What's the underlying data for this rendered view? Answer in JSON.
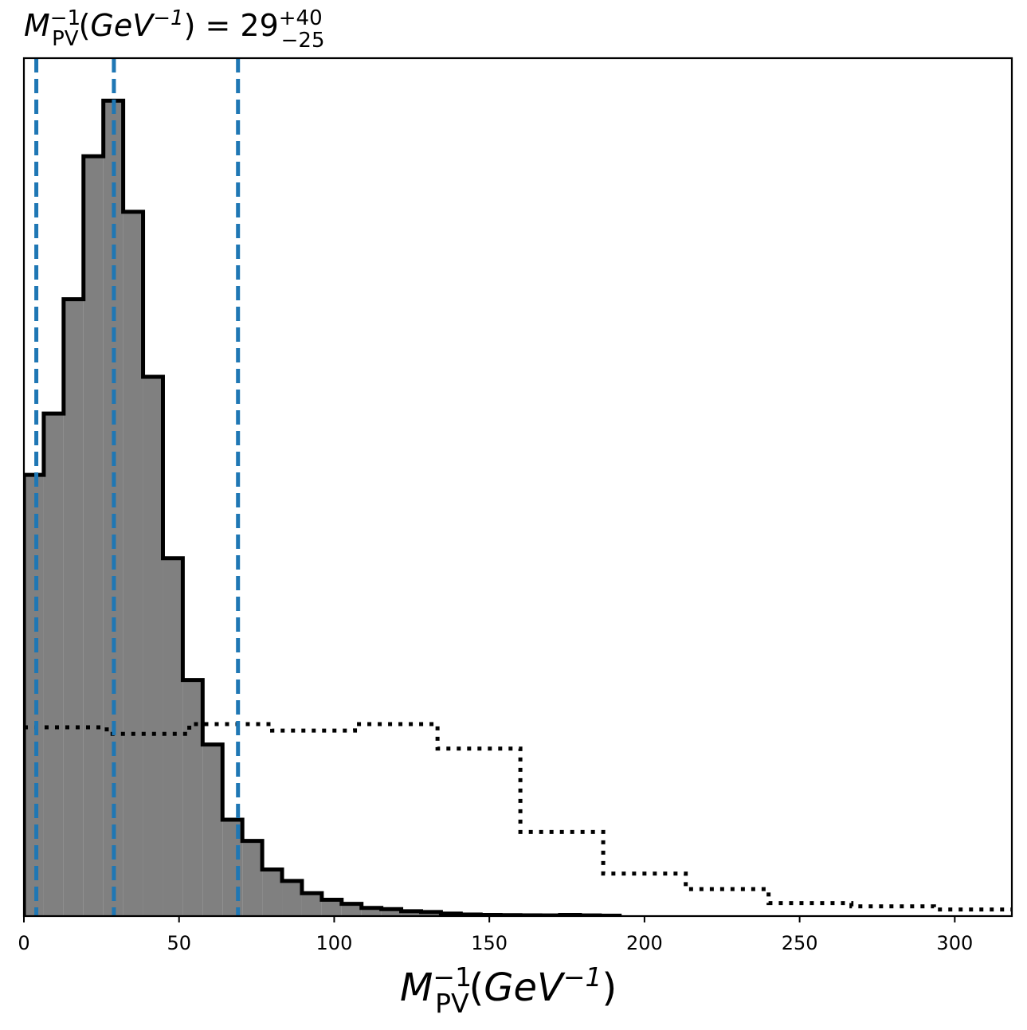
{
  "chart_data": {
    "type": "histogram",
    "title": {
      "var_main": "M",
      "var_sup": "−1",
      "var_sub": "PV",
      "unit_open": "(",
      "unit_main": "GeV",
      "unit_sup": "−1",
      "unit_close": ")",
      "equals": " = 29",
      "val_sup": "+40",
      "val_sub": "−25"
    },
    "xlabel": {
      "var_main": "M",
      "var_sup": "−1",
      "var_sub": "PV",
      "unit_open": "(",
      "unit_main": "GeV",
      "unit_sup": "−1",
      "unit_close": ")"
    },
    "ylabel": "",
    "xlim": [
      0,
      318.4
    ],
    "ylim": [
      0,
      1.05
    ],
    "x_ticks": [
      0,
      50,
      100,
      150,
      200,
      250,
      300
    ],
    "x_tick_labels": [
      "0",
      "50",
      "100",
      "150",
      "200",
      "250",
      "300"
    ],
    "y_ticks_visible": false,
    "grid": false,
    "series": [
      {
        "style": "filled-step",
        "fill_color": "#808080",
        "edge_color": "#000000",
        "bin_edges": [
          0,
          6.4,
          12.8,
          19.2,
          25.6,
          32.0,
          38.4,
          44.8,
          51.2,
          57.6,
          64.0,
          70.4,
          76.8,
          83.2,
          89.6,
          96.0,
          102.4,
          108.8,
          115.2,
          121.6,
          128.0,
          134.4,
          140.8,
          147.2,
          153.6,
          160.0,
          166.4,
          172.8,
          179.2,
          185.6,
          192.0
        ],
        "values": [
          0.54,
          0.615,
          0.755,
          0.93,
          0.998,
          0.862,
          0.66,
          0.438,
          0.289,
          0.21,
          0.118,
          0.092,
          0.057,
          0.043,
          0.028,
          0.02,
          0.015,
          0.01,
          0.0085,
          0.006,
          0.005,
          0.003,
          0.002,
          0.0015,
          0.0012,
          0.001,
          0.0008,
          0.0015,
          0.0008,
          0.0005
        ]
      },
      {
        "style": "dotted-step",
        "line_color": "#000000",
        "bin_edges": [
          0,
          26.7,
          53.3,
          80.0,
          106.7,
          133.3,
          160.0,
          186.7,
          213.3,
          240.0,
          266.7,
          293.3,
          318.4
        ],
        "values": [
          0.231,
          0.223,
          0.235,
          0.227,
          0.235,
          0.205,
          0.103,
          0.052,
          0.033,
          0.016,
          0.012,
          0.008
        ]
      }
    ],
    "vlines": {
      "color": "#1f77b4",
      "style": "dashed",
      "x": [
        4.0,
        29.0,
        69.0
      ]
    }
  }
}
